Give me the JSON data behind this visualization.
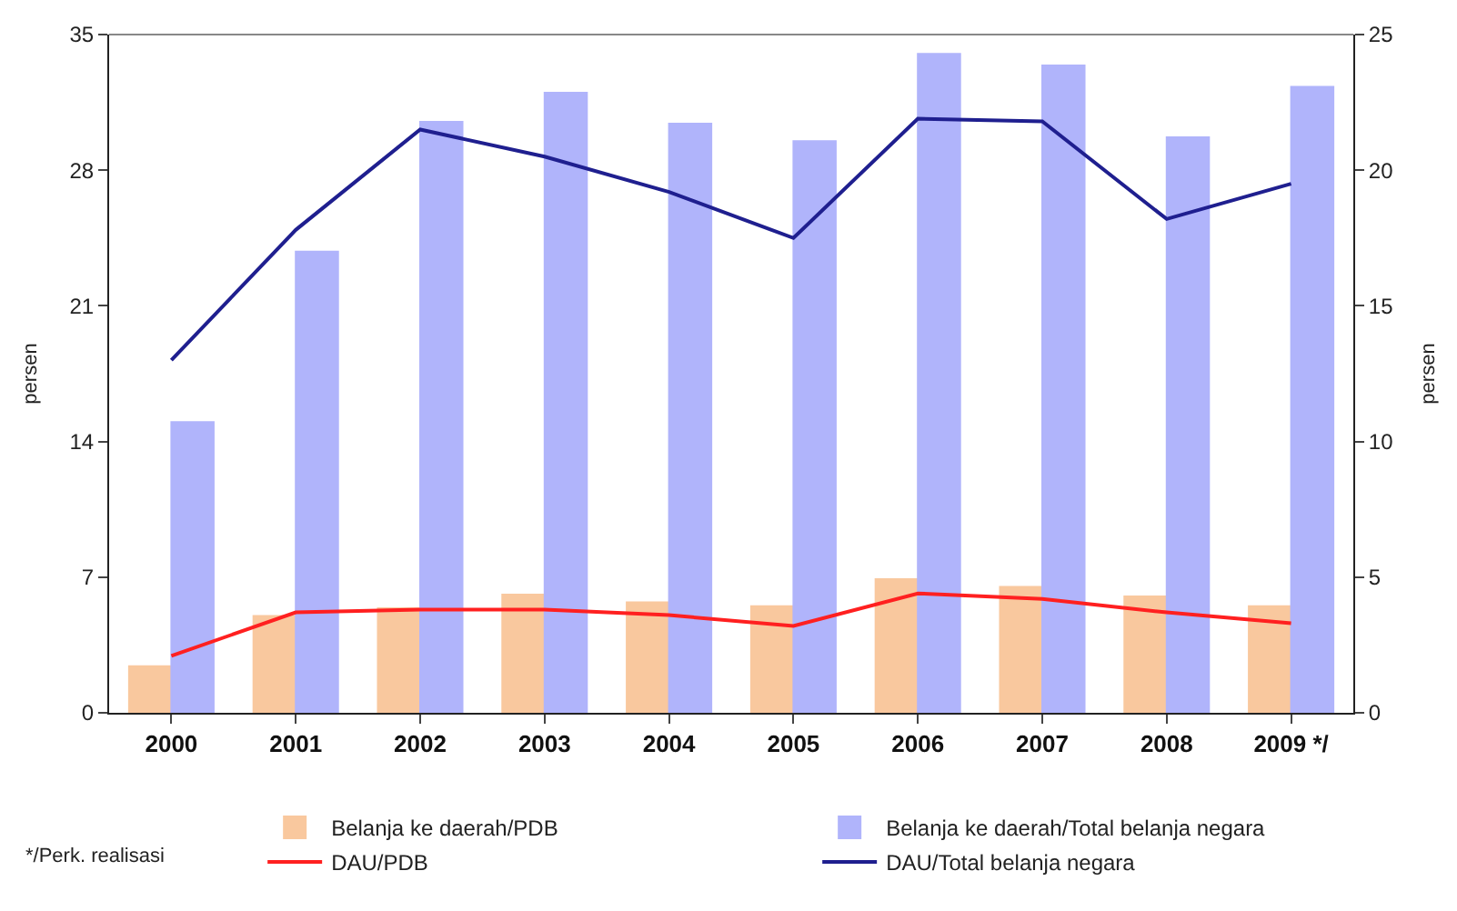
{
  "chart_data": {
    "type": "bar",
    "categories": [
      "2000",
      "2001",
      "2002",
      "2003",
      "2004",
      "2005",
      "2006",
      "2007",
      "2008",
      "2009 */"
    ],
    "series": [
      {
        "name": "Belanja ke daerah/PDB",
        "color": "#f9c89e",
        "values": [
          2.4,
          5.0,
          5.4,
          6.1,
          5.7,
          5.5,
          6.9,
          6.5,
          6.0,
          5.5
        ]
      },
      {
        "name": "Belanja ke daerah/Total belanja negara",
        "color": "#b0b4fb",
        "values": [
          15.0,
          23.8,
          30.5,
          32.0,
          30.4,
          29.5,
          34.0,
          33.4,
          29.7,
          32.3
        ]
      },
      {
        "name": "DAU/PDB",
        "type": "line",
        "axis": "y2",
        "color": "#ff2020",
        "values": [
          2.1,
          3.7,
          3.8,
          3.8,
          3.6,
          3.2,
          4.4,
          4.2,
          3.7,
          3.3
        ]
      },
      {
        "name": "DAU/Total belanja negara",
        "type": "line",
        "axis": "y2",
        "color": "#1f1f8f",
        "values": [
          13.0,
          17.8,
          21.5,
          20.5,
          19.2,
          17.5,
          21.9,
          21.8,
          18.2,
          19.5
        ]
      }
    ],
    "ylabel": "persen",
    "y2label": "persen",
    "ylim": [
      0,
      35
    ],
    "yticks": [
      0,
      7,
      14,
      21,
      28,
      35
    ],
    "y2lim": [
      0,
      25
    ],
    "y2ticks": [
      0,
      5,
      10,
      15,
      20,
      25
    ],
    "annotations": [
      "*/Perk. realisasi"
    ],
    "legend": "bottom",
    "marker": "none",
    "line_style": "solid"
  }
}
